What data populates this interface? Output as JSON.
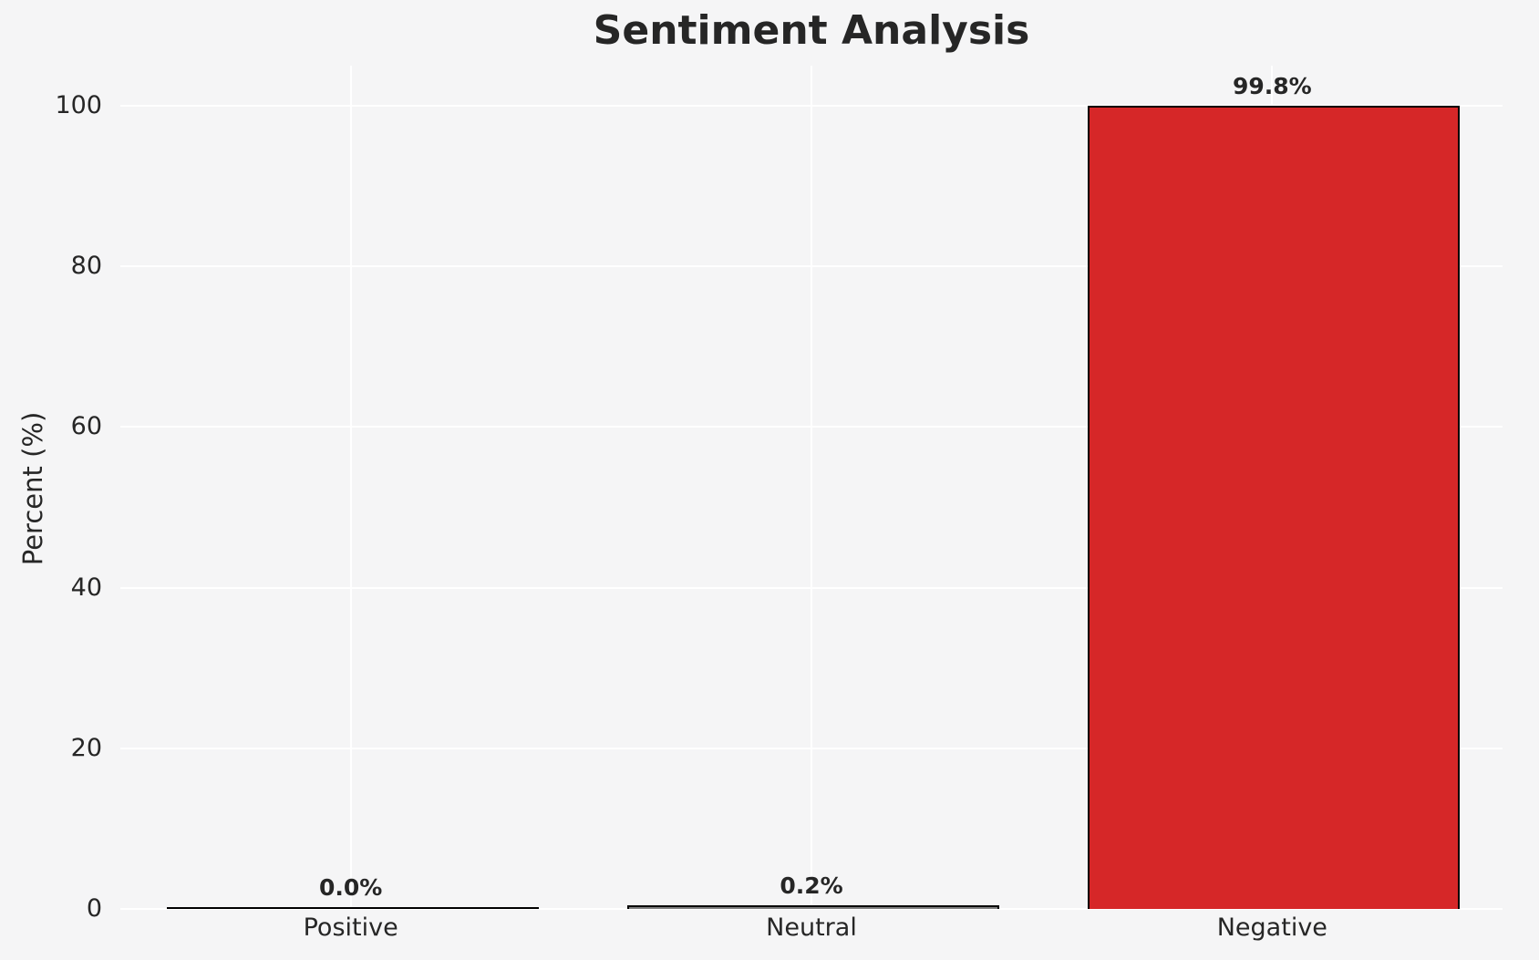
{
  "title": "Sentiment Analysis",
  "y_axis_label": "Percent (%)",
  "chart_data": {
    "type": "bar",
    "title": "Sentiment Analysis",
    "xlabel": "",
    "ylabel": "Percent (%)",
    "categories": [
      "Positive",
      "Neutral",
      "Negative"
    ],
    "values": [
      0.0,
      0.2,
      99.8
    ],
    "value_labels": [
      "0.0%",
      "0.2%",
      "99.8%"
    ],
    "yticks": [
      0,
      20,
      40,
      60,
      80,
      100
    ],
    "ylim": [
      0,
      105
    ],
    "grid": true,
    "legend": false,
    "bar_width_ratio": 0.8,
    "colors": {
      "background": "#f5f5f6",
      "gridline": "#ffffff",
      "text": "#262626",
      "bar_edge": "#000000",
      "bar_fills": [
        "#2ca02c",
        "#7f7f7f",
        "#d62728"
      ]
    }
  }
}
